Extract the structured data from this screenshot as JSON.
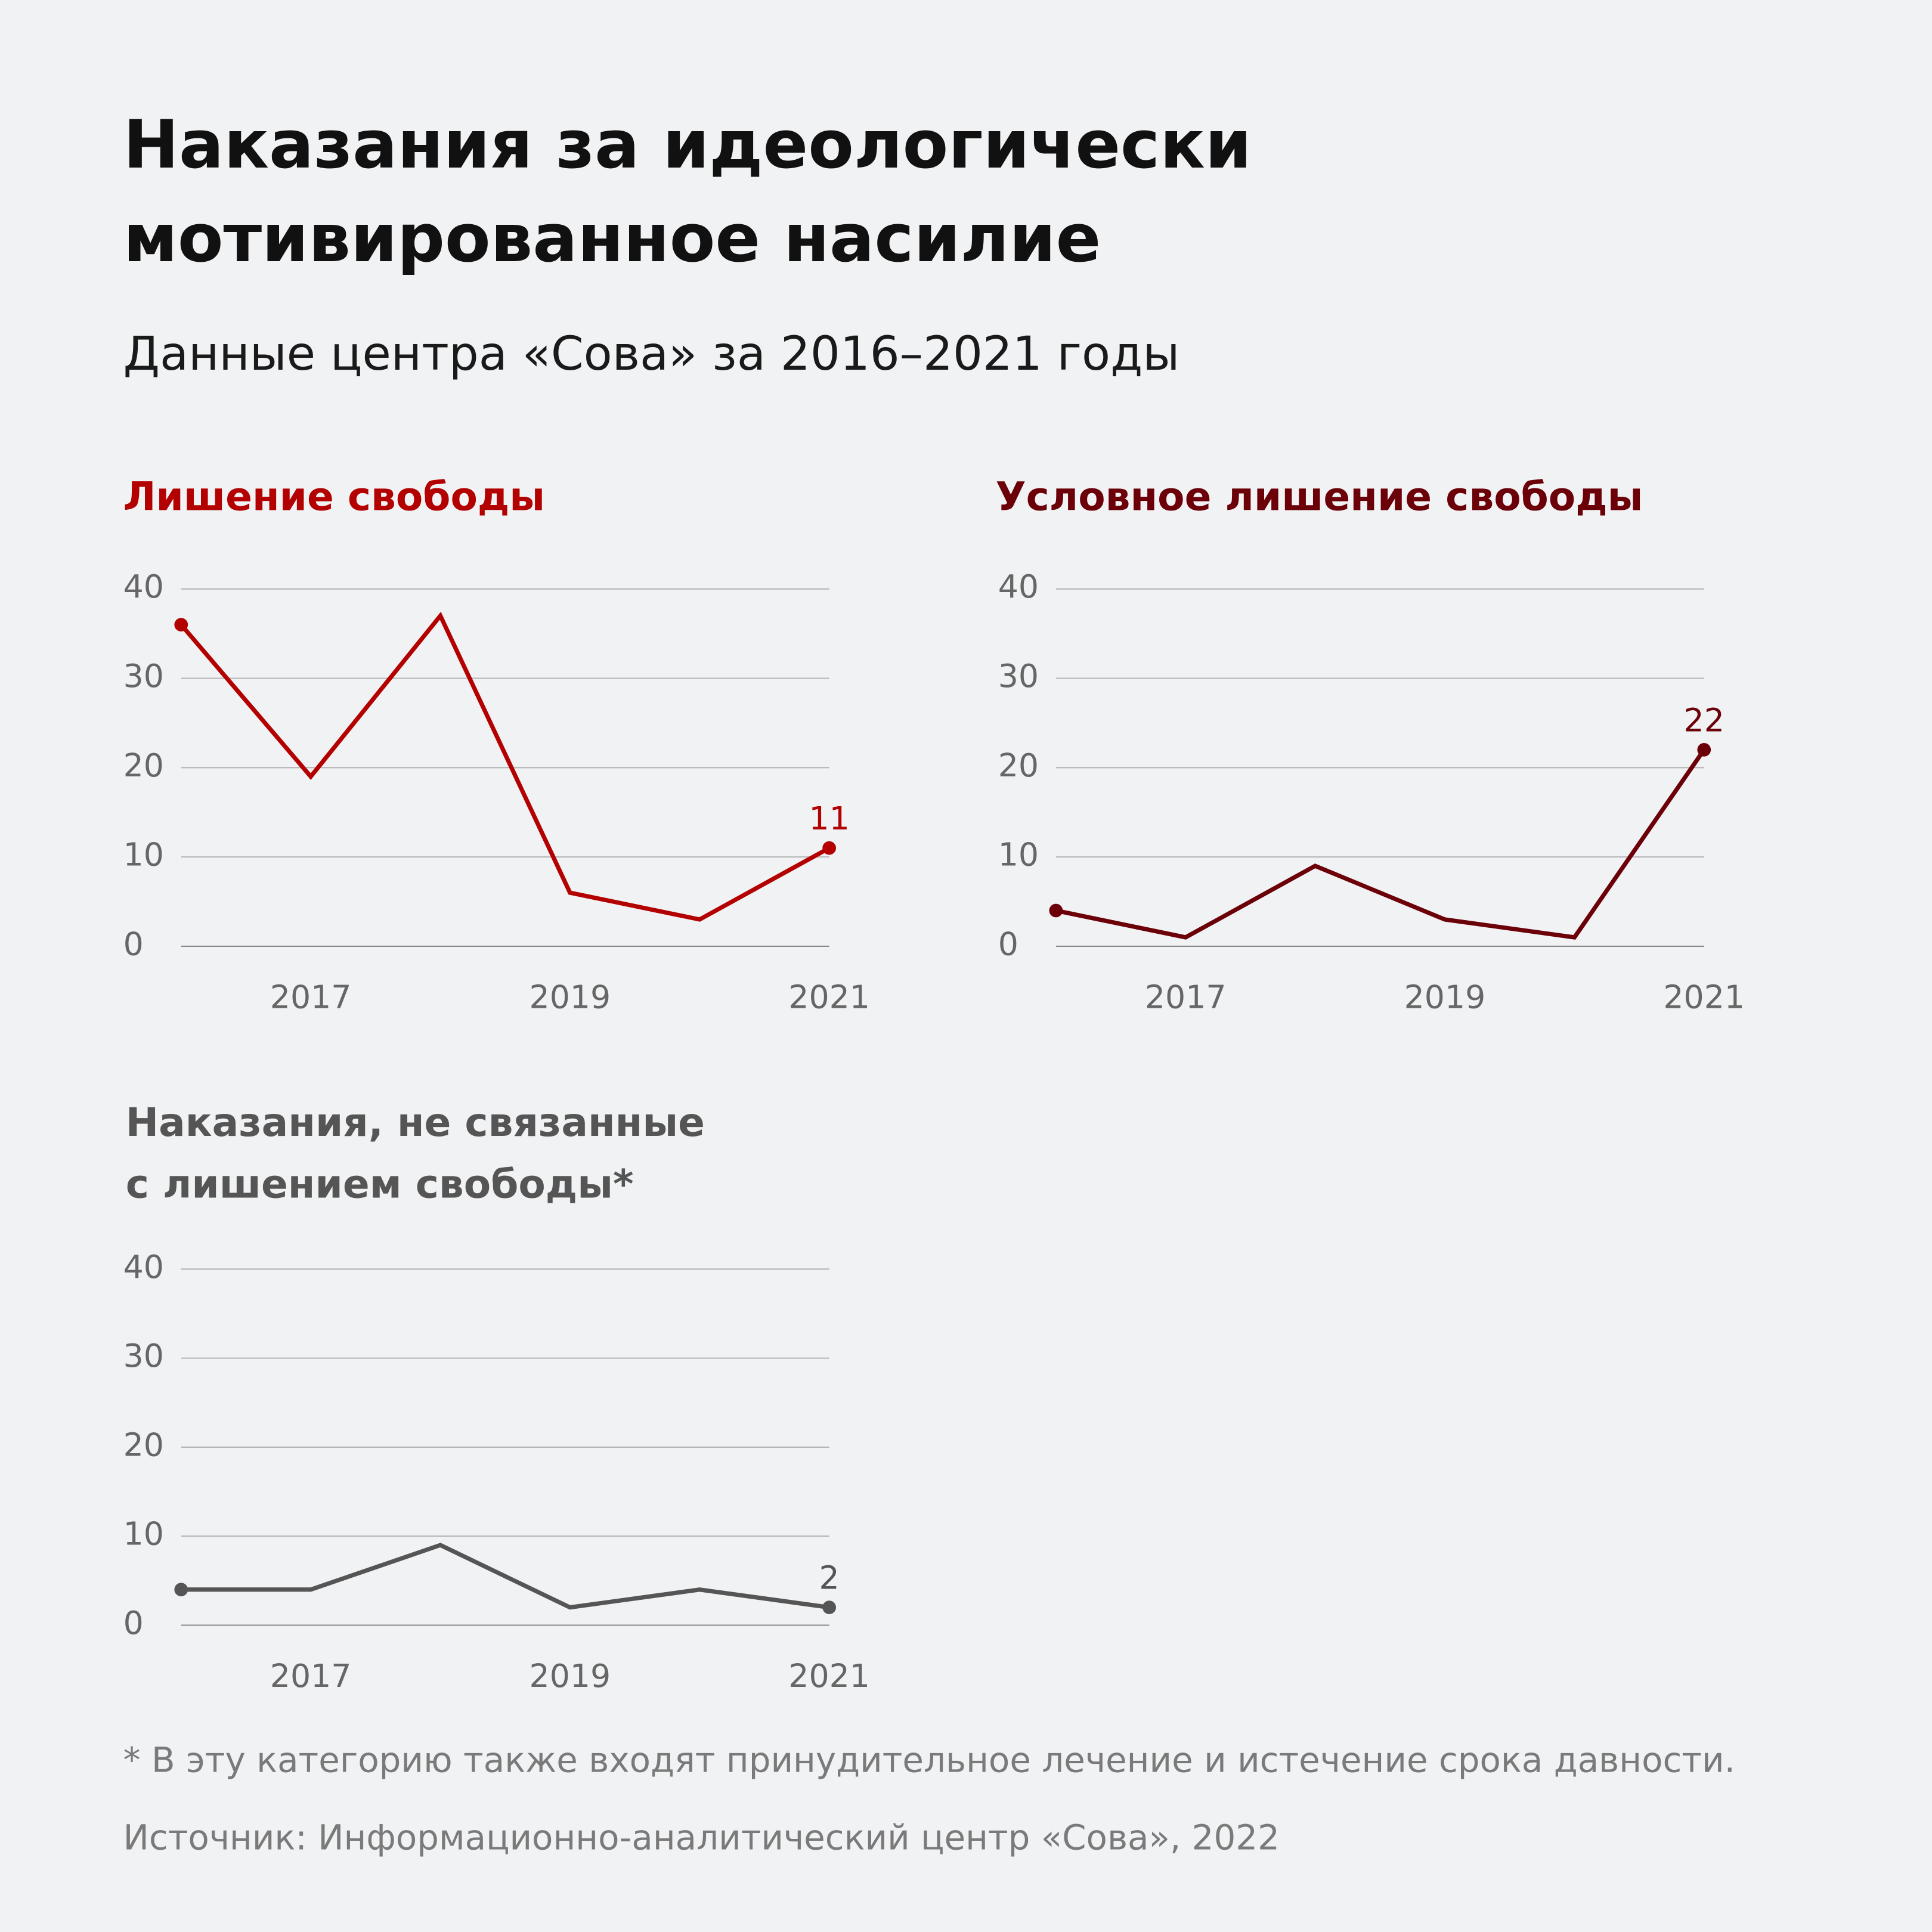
{
  "title_line1": "Наказания за идеологически",
  "title_line2": "мотивированное насилие",
  "subtitle": "Данные центра «Сова» за 2016–2021 годы",
  "footnote": "* В эту категорию также входят принудительное лечение и истечение срока давности.",
  "source": "Источник: Информационно-аналитический центр «Сова», 2022",
  "chart_data": [
    {
      "type": "line",
      "title": "Лишение свободы",
      "color": "#b30000",
      "x": [
        2016,
        2017,
        2018,
        2019,
        2020,
        2021
      ],
      "values": [
        36,
        19,
        37,
        6,
        3,
        11
      ],
      "xticks": [
        "2017",
        "2019",
        "2021"
      ],
      "yticks": [
        "0",
        "10",
        "20",
        "30",
        "40"
      ],
      "ylim": [
        0,
        40
      ],
      "end_label": "11"
    },
    {
      "type": "line",
      "title": "Условное лишение свободы",
      "color": "#6b0008",
      "x": [
        2016,
        2017,
        2018,
        2019,
        2020,
        2021
      ],
      "values": [
        4,
        1,
        9,
        3,
        1,
        22
      ],
      "xticks": [
        "2017",
        "2019",
        "2021"
      ],
      "yticks": [
        "0",
        "10",
        "20",
        "30",
        "40"
      ],
      "ylim": [
        0,
        40
      ],
      "end_label": "22"
    },
    {
      "type": "line",
      "title_line1": "Наказания, не связанные",
      "title_line2": "с лишением свободы*",
      "color": "#555555",
      "x": [
        2016,
        2017,
        2018,
        2019,
        2020,
        2021
      ],
      "values": [
        4,
        4,
        9,
        2,
        4,
        2
      ],
      "xticks": [
        "2017",
        "2019",
        "2021"
      ],
      "yticks": [
        "0",
        "10",
        "20",
        "30",
        "40"
      ],
      "ylim": [
        0,
        40
      ],
      "end_label": "2"
    }
  ]
}
